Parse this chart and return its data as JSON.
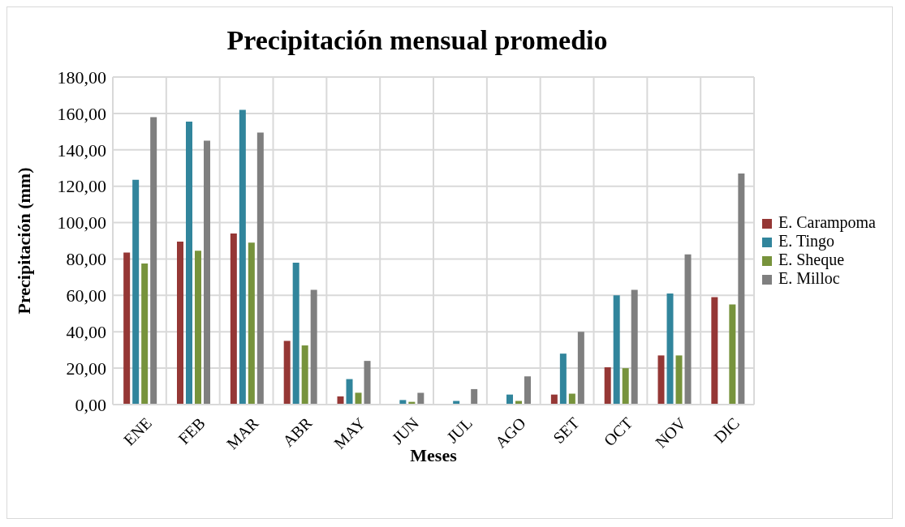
{
  "chart_data": {
    "type": "bar",
    "title": "Precipitación mensual promedio",
    "xlabel": "Meses",
    "ylabel": "Precipitación (mm)",
    "categories": [
      "ENE",
      "FEB",
      "MAR",
      "ABR",
      "MAY",
      "JUN",
      "JUL",
      "AGO",
      "SET",
      "OCT",
      "NOV",
      "DIC"
    ],
    "series": [
      {
        "name": "E. Carampoma",
        "color": "#953735",
        "values": [
          83.5,
          89.5,
          94,
          35,
          4.5,
          null,
          null,
          null,
          5.5,
          20.5,
          27,
          59
        ]
      },
      {
        "name": "E. Tingo",
        "color": "#31859c",
        "values": [
          123.5,
          155.5,
          162,
          78,
          14,
          2.5,
          2,
          5.5,
          28,
          60,
          61,
          null
        ]
      },
      {
        "name": "E. Sheque",
        "color": "#77933c",
        "values": [
          77.5,
          84.5,
          89,
          32.5,
          6.5,
          1.5,
          null,
          2,
          6,
          20,
          27,
          55
        ]
      },
      {
        "name": "E. Milloc",
        "color": "#7f7f7f",
        "values": [
          158,
          145,
          149.5,
          63,
          24,
          6.5,
          8.5,
          15.5,
          40,
          63,
          82.5,
          127
        ]
      }
    ],
    "ylim": [
      0,
      180
    ],
    "yticks": [
      {
        "value": 0,
        "label": "0,00"
      },
      {
        "value": 20,
        "label": "20,00"
      },
      {
        "value": 40,
        "label": "40,00"
      },
      {
        "value": 60,
        "label": "60,00"
      },
      {
        "value": 80,
        "label": "80,00"
      },
      {
        "value": 100,
        "label": "100,00"
      },
      {
        "value": 120,
        "label": "120,00"
      },
      {
        "value": 140,
        "label": "140,00"
      },
      {
        "value": 160,
        "label": "160,00"
      },
      {
        "value": 180,
        "label": "180,00"
      }
    ],
    "grid": true,
    "legend": "right"
  }
}
